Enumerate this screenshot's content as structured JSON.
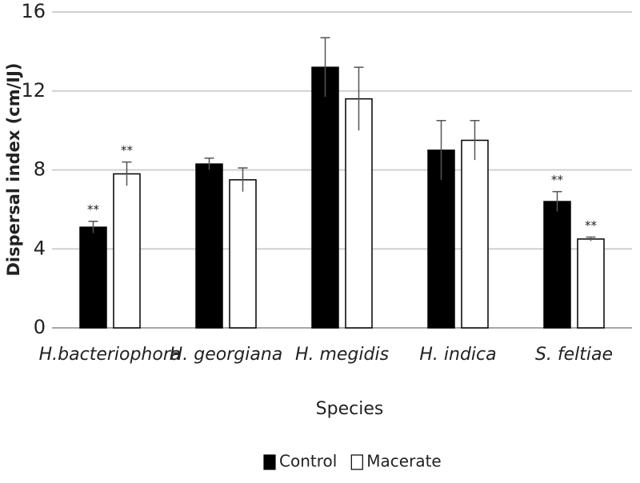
{
  "chart_data": {
    "type": "bar",
    "y_label": "Dispersal index (cm/IJ)",
    "x_label": "Species",
    "categories": [
      "H.bacteriophora",
      "H. georgiana",
      "H. megidis",
      "H. indica",
      "S. feltiae"
    ],
    "series": [
      {
        "name": "Control",
        "color": "#000000",
        "values": [
          5.1,
          8.3,
          13.2,
          9.0,
          6.4
        ],
        "errors": [
          0.3,
          0.3,
          1.5,
          1.5,
          0.5
        ],
        "annotations": [
          "**",
          null,
          null,
          null,
          "**"
        ]
      },
      {
        "name": "Macerate",
        "color": "#ffffff",
        "values": [
          7.8,
          7.5,
          11.6,
          9.5,
          4.5
        ],
        "errors": [
          0.6,
          0.6,
          1.6,
          1.0,
          0.1
        ],
        "annotations": [
          "**",
          null,
          null,
          null,
          "**"
        ]
      }
    ],
    "ylim": [
      0,
      16
    ],
    "yticks": [
      0,
      4,
      8,
      12,
      16
    ],
    "grid": true,
    "legend": "bottom"
  }
}
